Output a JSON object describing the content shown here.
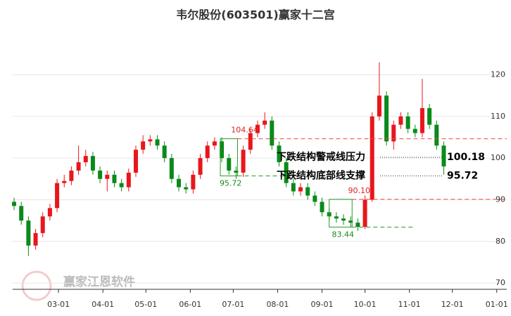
{
  "chart_data": {
    "type": "candlestick",
    "title": "韦尔股份(603501)赢家十二宫",
    "watermark": "赢家江恩软件",
    "up_color": "#e8161c",
    "down_color": "#0a8a1a",
    "x": [
      -3,
      2,
      7,
      12,
      17,
      22,
      27,
      32,
      37,
      42,
      47,
      52,
      57,
      62,
      67,
      72,
      77,
      82,
      87,
      92,
      97,
      102,
      107,
      112,
      117,
      122,
      127,
      132,
      137,
      142,
      147,
      152,
      157,
      162,
      167,
      172,
      177,
      182,
      187,
      192,
      197,
      202,
      207,
      212,
      217,
      222,
      227,
      232,
      237,
      242,
      247,
      252,
      257,
      262,
      267,
      272,
      277,
      282,
      287,
      292,
      297
    ],
    "open": [
      89.5,
      88.5,
      85,
      79,
      82,
      86,
      88,
      94,
      94.5,
      97,
      99,
      100.5,
      97,
      95,
      96,
      94,
      93,
      96.5,
      102,
      104,
      104.5,
      103,
      100,
      95,
      93,
      92.5,
      96,
      100,
      103,
      104,
      100,
      97,
      96.5,
      102,
      106,
      108,
      109,
      103,
      99,
      94,
      92,
      93,
      91,
      89.5,
      87,
      86,
      85.5,
      85,
      84.5,
      83.5,
      90,
      110,
      115,
      104,
      108,
      110,
      107,
      106,
      112,
      108,
      103
    ],
    "high": [
      90.5,
      89.5,
      86,
      83,
      87,
      89,
      95,
      96,
      98,
      103,
      102,
      101.5,
      98,
      97,
      97,
      95,
      97.5,
      103,
      105.5,
      105.5,
      105.5,
      104,
      101,
      96,
      94,
      97,
      101,
      104,
      105,
      105,
      101,
      98,
      103,
      107,
      109,
      111,
      110,
      104,
      100,
      95,
      94,
      94,
      92,
      90.5,
      88,
      87,
      86.5,
      86,
      85.5,
      91,
      111,
      123,
      116,
      109,
      111,
      111,
      108,
      119,
      113,
      109,
      104
    ],
    "low": [
      87.5,
      84,
      76.5,
      78,
      81,
      85,
      87,
      93,
      93.5,
      96,
      98,
      96,
      94,
      92,
      93,
      92,
      92,
      95.5,
      101,
      103,
      102,
      99,
      94,
      92,
      91.5,
      91.5,
      95,
      99,
      102,
      99,
      96,
      95,
      95.5,
      101,
      105,
      107,
      102,
      98,
      93,
      91,
      91,
      90,
      88.5,
      86,
      85,
      84.5,
      84,
      83.5,
      82.5,
      83,
      89.5,
      109,
      103,
      102,
      107,
      106,
      105,
      105,
      107,
      102,
      96
    ],
    "close": [
      88.5,
      85,
      79,
      82,
      86,
      88,
      94,
      94.5,
      97,
      99,
      100.5,
      97,
      95,
      96,
      94,
      93,
      96.5,
      102,
      104,
      104.5,
      103,
      100,
      95,
      93,
      92.5,
      96,
      100,
      103,
      104,
      100,
      97,
      96.5,
      102,
      106,
      108,
      109,
      103,
      99,
      94,
      92,
      93,
      91,
      89.5,
      87,
      86,
      85.5,
      85,
      84.5,
      83.5,
      90,
      110,
      115,
      104,
      108,
      110,
      107,
      106,
      112,
      108,
      103,
      98
    ],
    "xlim": [
      -4,
      341
    ],
    "xticks": [
      {
        "value": 28,
        "label": "03-01"
      },
      {
        "value": 59,
        "label": "04-01"
      },
      {
        "value": 89,
        "label": "05-01"
      },
      {
        "value": 120,
        "label": "06-01"
      },
      {
        "value": 150,
        "label": "07-01"
      },
      {
        "value": 181,
        "label": "08-01"
      },
      {
        "value": 212,
        "label": "09-01"
      },
      {
        "value": 242,
        "label": "10-01"
      },
      {
        "value": 273,
        "label": "11-01"
      },
      {
        "value": 303,
        "label": "12-01"
      },
      {
        "value": 334,
        "label": "01-01"
      }
    ],
    "ylim": [
      68.5,
      131.2
    ],
    "yticks": [
      70,
      80,
      90,
      100,
      110,
      120
    ],
    "grid": true,
    "boxes": [
      {
        "x": [
          141,
          153
        ],
        "values": [
          104.64,
          95.72
        ]
      },
      {
        "x": [
          217,
          233
        ],
        "values": [
          90.1,
          83.44
        ],
        "value_labels": [
          "90.10",
          "83.44"
        ]
      }
    ],
    "levels": [
      {
        "name": "下跌结构警戒线压力",
        "value": 100.18
      },
      {
        "name": "下跌结构底部线支撑",
        "value": 95.72
      }
    ]
  }
}
